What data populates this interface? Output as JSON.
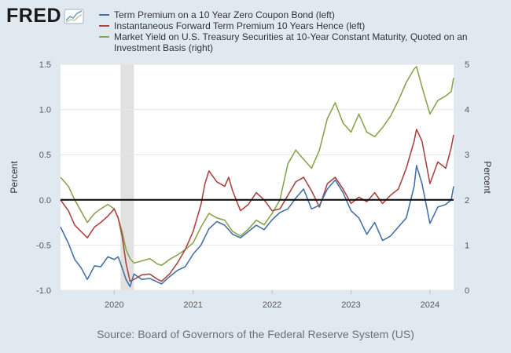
{
  "brand": {
    "name": "FRED"
  },
  "source": "Source: Board of Governors of the Federal Reserve System (US)",
  "chart_data": {
    "type": "line",
    "x_axis": {
      "range": [
        2019.32,
        2024.3
      ],
      "ticks": [
        "2020",
        "2021",
        "2022",
        "2023",
        "2024"
      ]
    },
    "y_left": {
      "label": "Percent",
      "range": [
        -1.0,
        1.5
      ],
      "ticks": [
        "-1.0",
        "-0.5",
        "0.0",
        "0.5",
        "1.0",
        "1.5"
      ]
    },
    "y_right": {
      "label": "Percent",
      "range": [
        0,
        5
      ],
      "ticks": [
        "0",
        "1",
        "2",
        "3",
        "4",
        "5"
      ]
    },
    "recession_shading": [
      [
        2020.08,
        2020.25
      ]
    ],
    "zero_line": 0.0,
    "grid": "horizontal",
    "series": [
      {
        "name": "Term Premium on a 10 Year Zero Coupon Bond (left)",
        "axis": "left",
        "color": "#4572a7",
        "points": [
          [
            2019.32,
            -0.3
          ],
          [
            2019.42,
            -0.48
          ],
          [
            2019.5,
            -0.66
          ],
          [
            2019.58,
            -0.75
          ],
          [
            2019.66,
            -0.88
          ],
          [
            2019.75,
            -0.73
          ],
          [
            2019.83,
            -0.74
          ],
          [
            2019.92,
            -0.63
          ],
          [
            2020.0,
            -0.66
          ],
          [
            2020.05,
            -0.63
          ],
          [
            2020.1,
            -0.75
          ],
          [
            2020.15,
            -0.88
          ],
          [
            2020.2,
            -0.96
          ],
          [
            2020.25,
            -0.82
          ],
          [
            2020.35,
            -0.88
          ],
          [
            2020.45,
            -0.87
          ],
          [
            2020.55,
            -0.91
          ],
          [
            2020.6,
            -0.93
          ],
          [
            2020.7,
            -0.85
          ],
          [
            2020.8,
            -0.78
          ],
          [
            2020.9,
            -0.74
          ],
          [
            2021.0,
            -0.6
          ],
          [
            2021.1,
            -0.5
          ],
          [
            2021.2,
            -0.32
          ],
          [
            2021.3,
            -0.24
          ],
          [
            2021.4,
            -0.28
          ],
          [
            2021.5,
            -0.38
          ],
          [
            2021.6,
            -0.42
          ],
          [
            2021.7,
            -0.35
          ],
          [
            2021.8,
            -0.28
          ],
          [
            2021.9,
            -0.33
          ],
          [
            2022.0,
            -0.22
          ],
          [
            2022.1,
            -0.14
          ],
          [
            2022.2,
            -0.1
          ],
          [
            2022.3,
            0.02
          ],
          [
            2022.4,
            0.12
          ],
          [
            2022.5,
            -0.1
          ],
          [
            2022.6,
            -0.06
          ],
          [
            2022.7,
            0.12
          ],
          [
            2022.8,
            0.22
          ],
          [
            2022.9,
            0.08
          ],
          [
            2023.0,
            -0.12
          ],
          [
            2023.1,
            -0.2
          ],
          [
            2023.2,
            -0.38
          ],
          [
            2023.3,
            -0.25
          ],
          [
            2023.4,
            -0.45
          ],
          [
            2023.5,
            -0.4
          ],
          [
            2023.6,
            -0.3
          ],
          [
            2023.7,
            -0.2
          ],
          [
            2023.8,
            0.15
          ],
          [
            2023.83,
            0.38
          ],
          [
            2023.9,
            0.18
          ],
          [
            2024.0,
            -0.26
          ],
          [
            2024.1,
            -0.08
          ],
          [
            2024.2,
            -0.05
          ],
          [
            2024.27,
            0.0
          ],
          [
            2024.3,
            0.15
          ]
        ]
      },
      {
        "name": "Instantaneous Forward Term Premium 10 Years Hence (left)",
        "axis": "left",
        "color": "#aa4643",
        "points": [
          [
            2019.32,
            0.0
          ],
          [
            2019.42,
            -0.12
          ],
          [
            2019.5,
            -0.28
          ],
          [
            2019.58,
            -0.35
          ],
          [
            2019.66,
            -0.42
          ],
          [
            2019.75,
            -0.3
          ],
          [
            2019.83,
            -0.25
          ],
          [
            2019.92,
            -0.18
          ],
          [
            2020.0,
            -0.1
          ],
          [
            2020.05,
            -0.2
          ],
          [
            2020.1,
            -0.4
          ],
          [
            2020.15,
            -0.7
          ],
          [
            2020.2,
            -0.9
          ],
          [
            2020.25,
            -0.88
          ],
          [
            2020.35,
            -0.83
          ],
          [
            2020.45,
            -0.82
          ],
          [
            2020.55,
            -0.88
          ],
          [
            2020.6,
            -0.9
          ],
          [
            2020.7,
            -0.82
          ],
          [
            2020.8,
            -0.7
          ],
          [
            2020.9,
            -0.55
          ],
          [
            2021.0,
            -0.35
          ],
          [
            2021.1,
            -0.05
          ],
          [
            2021.15,
            0.18
          ],
          [
            2021.2,
            0.32
          ],
          [
            2021.3,
            0.2
          ],
          [
            2021.4,
            0.15
          ],
          [
            2021.45,
            0.25
          ],
          [
            2021.5,
            0.1
          ],
          [
            2021.6,
            -0.12
          ],
          [
            2021.7,
            -0.05
          ],
          [
            2021.8,
            0.08
          ],
          [
            2021.9,
            0.0
          ],
          [
            2022.0,
            -0.12
          ],
          [
            2022.1,
            -0.1
          ],
          [
            2022.2,
            0.05
          ],
          [
            2022.3,
            0.2
          ],
          [
            2022.4,
            0.25
          ],
          [
            2022.5,
            0.1
          ],
          [
            2022.6,
            -0.08
          ],
          [
            2022.7,
            0.18
          ],
          [
            2022.8,
            0.25
          ],
          [
            2022.9,
            0.12
          ],
          [
            2023.0,
            -0.04
          ],
          [
            2023.1,
            0.03
          ],
          [
            2023.2,
            -0.02
          ],
          [
            2023.3,
            0.08
          ],
          [
            2023.4,
            -0.04
          ],
          [
            2023.5,
            0.05
          ],
          [
            2023.6,
            0.12
          ],
          [
            2023.7,
            0.35
          ],
          [
            2023.8,
            0.65
          ],
          [
            2023.83,
            0.78
          ],
          [
            2023.9,
            0.65
          ],
          [
            2024.0,
            0.18
          ],
          [
            2024.1,
            0.42
          ],
          [
            2024.2,
            0.35
          ],
          [
            2024.27,
            0.58
          ],
          [
            2024.3,
            0.72
          ]
        ]
      },
      {
        "name": "Market Yield on U.S. Treasury Securities at 10-Year Constant Maturity, Quoted on an Investment Basis (right)",
        "axis": "right",
        "color": "#89a54e",
        "points": [
          [
            2019.32,
            2.5
          ],
          [
            2019.42,
            2.3
          ],
          [
            2019.5,
            2.0
          ],
          [
            2019.58,
            1.75
          ],
          [
            2019.66,
            1.5
          ],
          [
            2019.75,
            1.7
          ],
          [
            2019.83,
            1.8
          ],
          [
            2019.92,
            1.9
          ],
          [
            2020.0,
            1.8
          ],
          [
            2020.05,
            1.6
          ],
          [
            2020.1,
            1.3
          ],
          [
            2020.15,
            0.9
          ],
          [
            2020.2,
            0.7
          ],
          [
            2020.25,
            0.6
          ],
          [
            2020.35,
            0.65
          ],
          [
            2020.45,
            0.7
          ],
          [
            2020.55,
            0.58
          ],
          [
            2020.6,
            0.55
          ],
          [
            2020.7,
            0.68
          ],
          [
            2020.8,
            0.78
          ],
          [
            2020.9,
            0.9
          ],
          [
            2021.0,
            1.05
          ],
          [
            2021.1,
            1.4
          ],
          [
            2021.2,
            1.7
          ],
          [
            2021.3,
            1.6
          ],
          [
            2021.4,
            1.55
          ],
          [
            2021.5,
            1.3
          ],
          [
            2021.6,
            1.2
          ],
          [
            2021.7,
            1.35
          ],
          [
            2021.8,
            1.55
          ],
          [
            2021.9,
            1.45
          ],
          [
            2022.0,
            1.7
          ],
          [
            2022.1,
            2.0
          ],
          [
            2022.2,
            2.8
          ],
          [
            2022.3,
            3.1
          ],
          [
            2022.4,
            2.9
          ],
          [
            2022.5,
            2.7
          ],
          [
            2022.6,
            3.1
          ],
          [
            2022.7,
            3.8
          ],
          [
            2022.8,
            4.15
          ],
          [
            2022.9,
            3.7
          ],
          [
            2023.0,
            3.5
          ],
          [
            2023.1,
            3.9
          ],
          [
            2023.2,
            3.5
          ],
          [
            2023.3,
            3.4
          ],
          [
            2023.4,
            3.6
          ],
          [
            2023.5,
            3.85
          ],
          [
            2023.6,
            4.2
          ],
          [
            2023.7,
            4.6
          ],
          [
            2023.8,
            4.9
          ],
          [
            2023.83,
            4.95
          ],
          [
            2023.9,
            4.5
          ],
          [
            2024.0,
            3.9
          ],
          [
            2024.1,
            4.2
          ],
          [
            2024.2,
            4.3
          ],
          [
            2024.27,
            4.4
          ],
          [
            2024.3,
            4.7
          ]
        ]
      }
    ]
  }
}
